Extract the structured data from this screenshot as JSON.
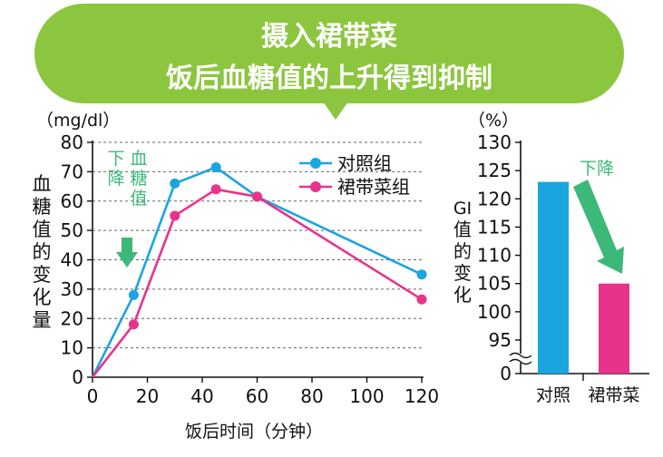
{
  "header": {
    "line1": "摄入裙带菜",
    "line2": "饭后血糖值的上升得到抑制",
    "bubble_color": "#8cc63f"
  },
  "chart_data": [
    {
      "type": "line",
      "title": "",
      "unit": "（mg/dl）",
      "ylabel": "血糖值的变化量",
      "xlabel": "饭后时间（分钟）",
      "xlim": [
        0,
        120
      ],
      "ylim": [
        0,
        80
      ],
      "x_ticks": [
        0,
        20,
        40,
        60,
        80,
        100,
        120
      ],
      "y_ticks": [
        0,
        10,
        20,
        30,
        40,
        50,
        60,
        70,
        80
      ],
      "grid": "horizontal-dashed",
      "legend_position": "top-right",
      "annotation": "下降血糖值",
      "annotation_color": "#3cb878",
      "series": [
        {
          "name": "对照组",
          "color": "#1aa5e0",
          "x": [
            0,
            15,
            30,
            45,
            60,
            120
          ],
          "y": [
            0,
            28,
            66,
            71.5,
            61.5,
            35
          ]
        },
        {
          "name": "裙带菜组",
          "color": "#e8338b",
          "x": [
            0,
            15,
            30,
            45,
            60,
            120
          ],
          "y": [
            0,
            18,
            55,
            64,
            61.5,
            26.5
          ]
        }
      ]
    },
    {
      "type": "bar",
      "title": "",
      "unit": "（%）",
      "ylabel": "GI值的变化",
      "categories": [
        "对照",
        "裙带菜"
      ],
      "values": [
        123,
        105
      ],
      "colors": [
        "#1aa5e0",
        "#e8338b"
      ],
      "ylim": [
        95,
        130
      ],
      "y_ticks": [
        0,
        95,
        100,
        105,
        110,
        115,
        120,
        125,
        130
      ],
      "axis_break": true,
      "annotation": "下降",
      "annotation_color": "#3cb878"
    }
  ]
}
